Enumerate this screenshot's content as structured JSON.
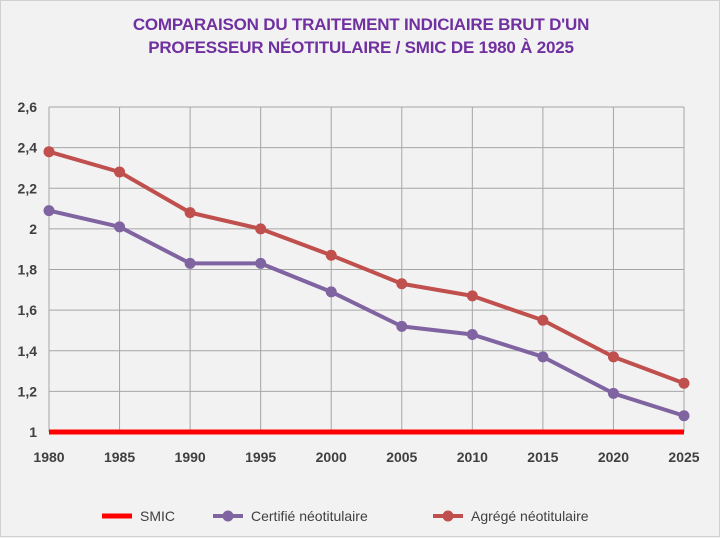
{
  "chart_data": {
    "type": "line",
    "title_lines": [
      "COMPARAISON DU TRAITEMENT INDICIAIRE BRUT D'UN",
      "PROFESSEUR NÉOTITULAIRE / SMIC DE 1980 À 2025"
    ],
    "x": [
      1980,
      1985,
      1990,
      1995,
      2000,
      2005,
      2010,
      2015,
      2020,
      2025
    ],
    "x_tick_labels": [
      "1980",
      "1985",
      "1990",
      "1995",
      "2000",
      "2005",
      "2010",
      "2015",
      "2020",
      "2025"
    ],
    "y_ticks": [
      1,
      1.2,
      1.4,
      1.6,
      1.8,
      2,
      2.2,
      2.4,
      2.6
    ],
    "y_tick_labels": [
      "1",
      "1,2",
      "1,4",
      "1,6",
      "1,8",
      "2",
      "2,2",
      "2,4",
      "2,6"
    ],
    "ylim": [
      1,
      2.6
    ],
    "grid": true,
    "legend_position": "bottom",
    "series": [
      {
        "name": "SMIC",
        "color": "#ff0000",
        "markers": false,
        "values": [
          1,
          1,
          1,
          1,
          1,
          1,
          1,
          1,
          1,
          1
        ]
      },
      {
        "name": "Certifié néotitulaire",
        "color": "#8064a2",
        "markers": true,
        "values": [
          2.09,
          2.01,
          1.83,
          1.83,
          1.69,
          1.52,
          1.48,
          1.37,
          1.19,
          1.08
        ]
      },
      {
        "name": "Agrégé néotitulaire",
        "color": "#c0504d",
        "markers": true,
        "values": [
          2.38,
          2.28,
          2.08,
          2.0,
          1.87,
          1.73,
          1.67,
          1.55,
          1.37,
          1.24
        ]
      }
    ]
  }
}
